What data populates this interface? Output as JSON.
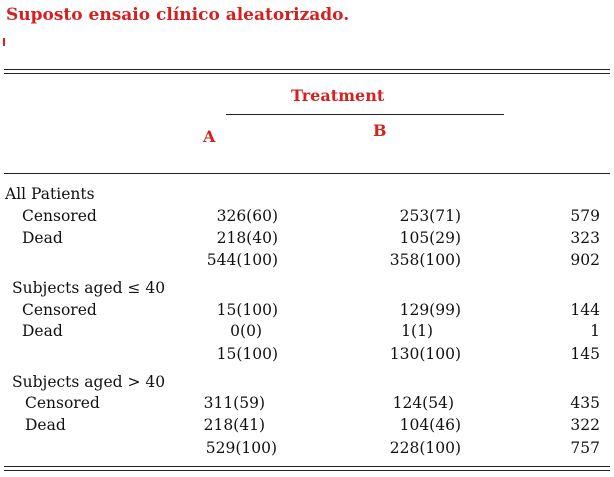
{
  "title": "Suposto ensaio clínico aleatorizado.",
  "header": {
    "group_label": "Treatment",
    "col_a": "A",
    "col_b": "B"
  },
  "colors": {
    "accent": "#d42020",
    "text": "#111111"
  },
  "sections": [
    {
      "label": "All Patients",
      "rows": [
        {
          "label": "Censored",
          "a": "326(60)",
          "b": "253(71)",
          "total": "579"
        },
        {
          "label": "Dead",
          "a": "218(40)",
          "b": "105(29)",
          "total": "323"
        },
        {
          "label": "",
          "a": "544(100)",
          "b": "358(100)",
          "total": "902"
        }
      ]
    },
    {
      "label": "Subjects aged ≤ 40",
      "rows": [
        {
          "label": "Censored",
          "a": "15(100)",
          "b": "129(99)",
          "total": "144"
        },
        {
          "label": "Dead",
          "a": "0(0)",
          "b": "1(1)",
          "total": "1"
        },
        {
          "label": "",
          "a": "15(100)",
          "b": "130(100)",
          "total": "145"
        }
      ]
    },
    {
      "label": "Subjects aged > 40",
      "rows": [
        {
          "label": "Censored",
          "a": "311(59)",
          "b": "124(54)",
          "total": "435"
        },
        {
          "label": "Dead",
          "a": "218(41)",
          "b": "104(46)",
          "total": "322"
        },
        {
          "label": "",
          "a": "529(100)",
          "b": "228(100)",
          "total": "757"
        }
      ]
    }
  ]
}
